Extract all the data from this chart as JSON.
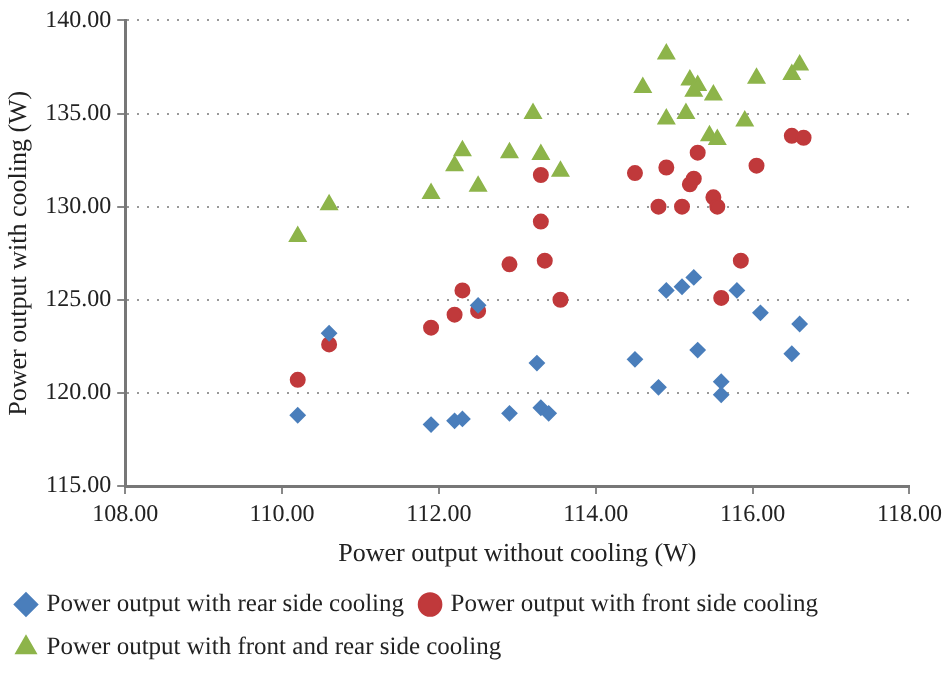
{
  "chart_data": {
    "type": "scatter",
    "xlabel": "Power output without cooling (W)",
    "ylabel": "Power output with cooling (W)",
    "xlim": [
      108,
      118
    ],
    "ylim": [
      115,
      140
    ],
    "xticks": [
      {
        "value": 108,
        "label": "108.00"
      },
      {
        "value": 110,
        "label": "110.00"
      },
      {
        "value": 112,
        "label": "112.00"
      },
      {
        "value": 114,
        "label": "114.00"
      },
      {
        "value": 116,
        "label": "116.00"
      },
      {
        "value": 118,
        "label": "118.00"
      }
    ],
    "yticks": [
      {
        "value": 115,
        "label": "115.00"
      },
      {
        "value": 120,
        "label": "120.00"
      },
      {
        "value": 125,
        "label": "125.00"
      },
      {
        "value": 130,
        "label": "130.00"
      },
      {
        "value": 135,
        "label": "135.00"
      },
      {
        "value": 140,
        "label": "140.00"
      }
    ],
    "grid": "y",
    "legend": "bottom",
    "series": [
      {
        "name": "Power output with rear side cooling",
        "color": "#4a7ebb",
        "marker": "diamond",
        "x": [
          110.2,
          110.6,
          111.9,
          112.2,
          112.3,
          112.5,
          112.9,
          113.25,
          113.3,
          113.4,
          114.5,
          114.8,
          114.9,
          115.1,
          115.25,
          115.3,
          115.6,
          115.6,
          115.8,
          116.1,
          116.5,
          116.6
        ],
        "values": [
          118.8,
          123.2,
          118.3,
          118.5,
          118.6,
          124.7,
          118.9,
          121.6,
          119.2,
          118.9,
          121.8,
          120.3,
          125.5,
          125.7,
          126.2,
          122.3,
          120.6,
          119.9,
          125.5,
          124.3,
          122.1,
          123.7
        ]
      },
      {
        "name": "Power output with front side cooling",
        "color": "#c0393b",
        "marker": "circle",
        "x": [
          110.2,
          110.6,
          111.9,
          112.2,
          112.3,
          112.5,
          112.9,
          113.3,
          113.3,
          113.35,
          113.55,
          114.5,
          114.8,
          114.9,
          115.1,
          115.2,
          115.25,
          115.3,
          115.5,
          115.55,
          115.6,
          115.85,
          116.05,
          116.5,
          116.65
        ],
        "values": [
          120.7,
          122.6,
          123.5,
          124.2,
          125.5,
          124.4,
          126.9,
          131.7,
          129.2,
          127.1,
          125.0,
          131.8,
          130.0,
          132.1,
          130.0,
          131.2,
          131.5,
          132.9,
          130.5,
          130.0,
          125.1,
          127.1,
          132.2,
          133.8,
          133.7
        ]
      },
      {
        "name": "Power output with front and rear side cooling",
        "color": "#8db44a",
        "marker": "triangle",
        "x": [
          110.2,
          110.6,
          111.9,
          112.2,
          112.3,
          112.5,
          112.9,
          113.2,
          113.3,
          113.55,
          114.6,
          114.9,
          114.9,
          115.15,
          115.2,
          115.25,
          115.3,
          115.5,
          115.45,
          115.55,
          115.9,
          116.05,
          116.5,
          116.6
        ],
        "values": [
          128.4,
          130.1,
          130.7,
          132.2,
          133.0,
          131.1,
          132.9,
          135.0,
          132.8,
          131.9,
          136.4,
          138.2,
          134.7,
          135.0,
          136.8,
          136.2,
          136.5,
          136.0,
          133.8,
          133.6,
          134.6,
          136.9,
          137.1,
          137.6
        ]
      }
    ]
  }
}
